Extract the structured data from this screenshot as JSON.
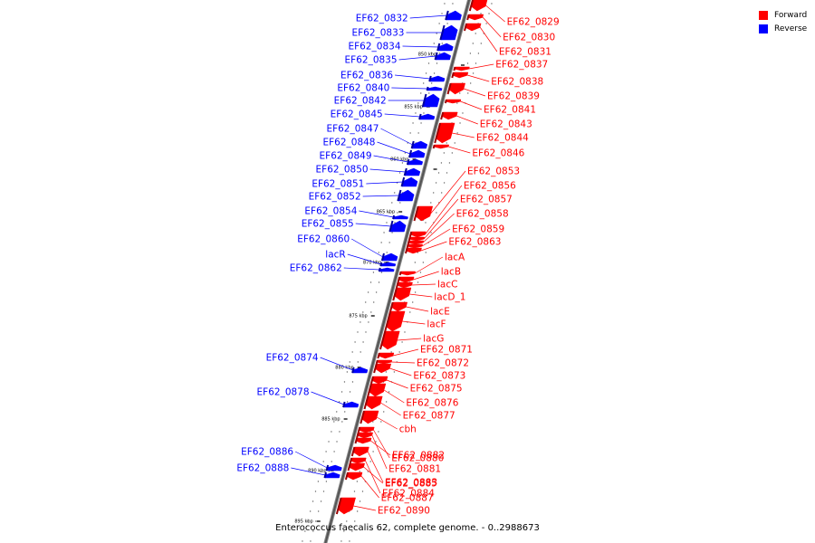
{
  "legend": {
    "forward_label": "Forward",
    "reverse_label": "Reverse",
    "forward_color": "#ff0000",
    "reverse_color": "#0000ff"
  },
  "caption": "Enterococcus faecalis 62, complete genome. - 0..2988673",
  "ticks": [
    "850 kbp",
    "855 kbp",
    "860 kbp",
    "865 kbp",
    "870 kbp",
    "875 kbp",
    "880 kbp",
    "885 kbp",
    "890 kbp",
    "895 kbp"
  ],
  "reverse_genes": [
    "EF62_0832",
    "EF62_0833",
    "EF62_0834",
    "EF62_0835",
    "EF62_0836",
    "EF62_0840",
    "EF62_0842",
    "EF62_0845",
    "EF62_0847",
    "EF62_0848",
    "EF62_0849",
    "EF62_0850",
    "EF62_0851",
    "EF62_0852",
    "EF62_0854",
    "EF62_0855",
    "EF62_0860",
    "lacR",
    "EF62_0862",
    "EF62_0874",
    "EF62_0878",
    "EF62_0886",
    "EF62_0888"
  ],
  "forward_genes": [
    "EF62_0829",
    "EF62_0830",
    "EF62_0831",
    "EF62_0837",
    "EF62_0838",
    "EF62_0839",
    "EF62_0841",
    "EF62_0843",
    "EF62_0844",
    "EF62_0846",
    "EF62_0853",
    "EF62_0856",
    "EF62_0857",
    "EF62_0858",
    "EF62_0859",
    "EF62_0863",
    "lacA",
    "lacB",
    "lacC",
    "lacD_1",
    "lacE",
    "lacF",
    "lacG",
    "EF62_0871",
    "EF62_0872",
    "EF62_0873",
    "EF62_0875",
    "EF62_0876",
    "EF62_0877",
    "cbh",
    "EF62_0880",
    "EF62_0881",
    "EF62_0882",
    "EF62_0883",
    "EF62_0884",
    "EF62_0885",
    "EF62_0887",
    "EF62_0890"
  ]
}
